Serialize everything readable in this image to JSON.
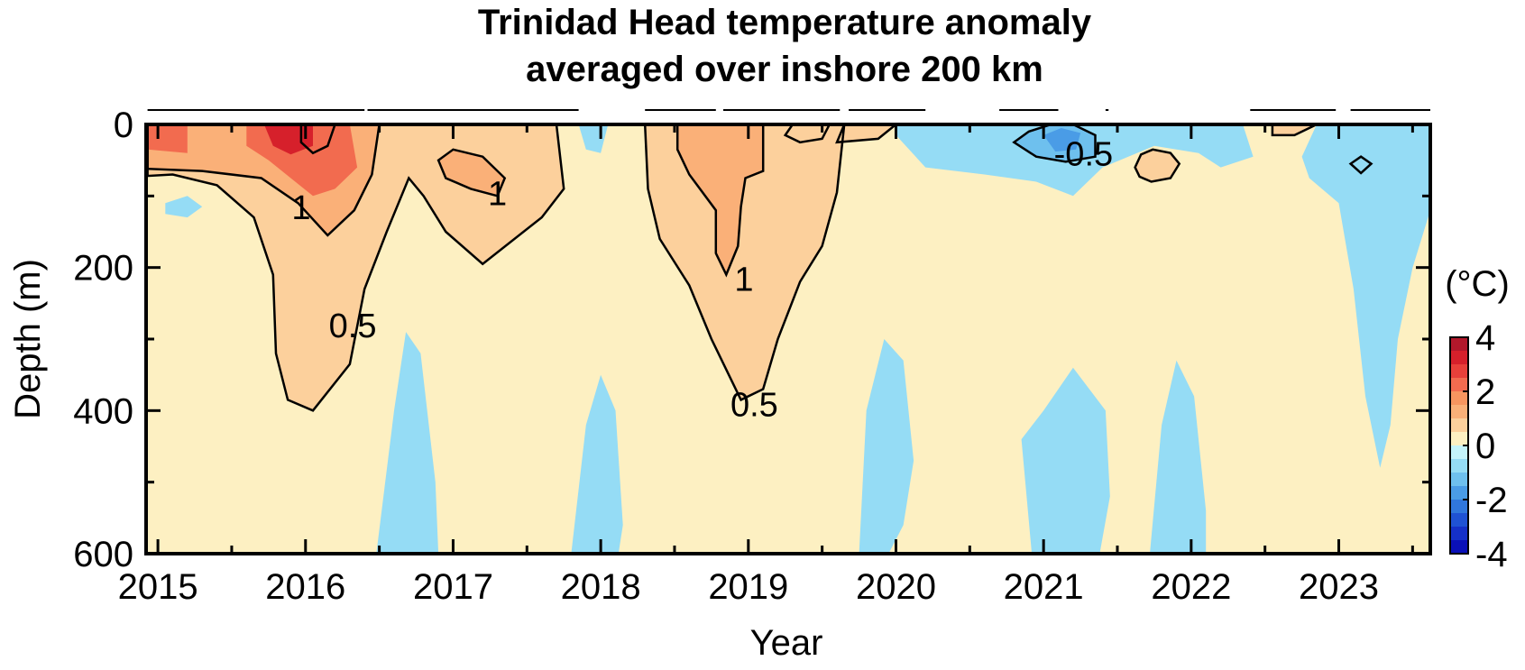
{
  "chart_data": {
    "type": "heatmap",
    "title_line1": "Trinidad Head temperature anomaly",
    "title_line2": "averaged over inshore 200 km",
    "xlabel": "Year",
    "ylabel": "Depth (m)",
    "x_ticks": [
      "2015",
      "2016",
      "2017",
      "2018",
      "2019",
      "2020",
      "2021",
      "2022",
      "2023"
    ],
    "xlim": [
      2014.92,
      2023.62
    ],
    "y_ticks": [
      "0",
      "200",
      "400",
      "600"
    ],
    "ylim": [
      0,
      600
    ],
    "y_inverted": true,
    "colorbar": {
      "unit": "(°C)",
      "ticks": [
        "4",
        "2",
        "0",
        "-2",
        "-4"
      ],
      "range": [
        -4,
        4
      ],
      "levels": [
        {
          "from": 3.5,
          "to": 4,
          "color": "#b2182b"
        },
        {
          "from": 3,
          "to": 3.5,
          "color": "#d6202b"
        },
        {
          "from": 2.5,
          "to": 3,
          "color": "#e8403a"
        },
        {
          "from": 2,
          "to": 2.5,
          "color": "#f26b4f"
        },
        {
          "from": 1.5,
          "to": 2,
          "color": "#f7955f"
        },
        {
          "from": 1,
          "to": 1.5,
          "color": "#fab078"
        },
        {
          "from": 0.5,
          "to": 1,
          "color": "#fcd09c"
        },
        {
          "from": 0,
          "to": 0.5,
          "color": "#fdf0c2"
        },
        {
          "from": -0.5,
          "to": 0,
          "color": "#c4f4fb"
        },
        {
          "from": -1,
          "to": -0.5,
          "color": "#95dcf5"
        },
        {
          "from": -1.5,
          "to": -1,
          "color": "#6ec0ee"
        },
        {
          "from": -2,
          "to": -1.5,
          "color": "#4a9ce6"
        },
        {
          "from": -2.5,
          "to": -2,
          "color": "#3077dd"
        },
        {
          "from": -3,
          "to": -2.5,
          "color": "#1f52d4"
        },
        {
          "from": -3.5,
          "to": -3,
          "color": "#1530c8"
        },
        {
          "from": -4,
          "to": -3.5,
          "color": "#0a10b8"
        }
      ]
    },
    "contour_levels": [
      -0.5,
      0.5,
      1
    ],
    "contour_labels": [
      {
        "text": "1",
        "year": 2015.97,
        "depth": 115
      },
      {
        "text": "1",
        "year": 2017.3,
        "depth": 95
      },
      {
        "text": "0.5",
        "year": 2016.32,
        "depth": 280
      },
      {
        "text": "1",
        "year": 2018.97,
        "depth": 215
      },
      {
        "text": "0.5",
        "year": 2019.04,
        "depth": 390
      },
      {
        "text": "-0.5",
        "year": 2021.27,
        "depth": 40
      }
    ],
    "anomaly_regions": [
      {
        "level": 0.5,
        "polygon": [
          [
            2014.93,
            0
          ],
          [
            2016.9,
            0
          ],
          [
            2017.7,
            0
          ],
          [
            2017.75,
            90
          ],
          [
            2017.6,
            130
          ],
          [
            2017.2,
            195
          ],
          [
            2016.95,
            150
          ],
          [
            2016.8,
            100
          ],
          [
            2016.7,
            75
          ],
          [
            2016.55,
            150
          ],
          [
            2016.4,
            230
          ],
          [
            2016.3,
            335
          ],
          [
            2016.05,
            400
          ],
          [
            2015.88,
            385
          ],
          [
            2015.8,
            320
          ],
          [
            2015.78,
            210
          ],
          [
            2015.65,
            130
          ],
          [
            2015.4,
            85
          ],
          [
            2015.1,
            70
          ],
          [
            2014.93,
            72
          ]
        ]
      },
      {
        "level": 0.5,
        "polygon": [
          [
            2018.3,
            0
          ],
          [
            2019.65,
            0
          ],
          [
            2019.6,
            95
          ],
          [
            2019.5,
            170
          ],
          [
            2019.35,
            220
          ],
          [
            2019.2,
            300
          ],
          [
            2019.1,
            370
          ],
          [
            2018.95,
            385
          ],
          [
            2018.75,
            300
          ],
          [
            2018.6,
            225
          ],
          [
            2018.4,
            160
          ],
          [
            2018.32,
            90
          ]
        ]
      },
      {
        "level": 0.5,
        "polygon": [
          [
            2019.65,
            0
          ],
          [
            2020.0,
            0
          ],
          [
            2019.88,
            20
          ],
          [
            2019.6,
            25
          ]
        ]
      },
      {
        "level": 0.5,
        "polygon": [
          [
            2021.62,
            60
          ],
          [
            2021.66,
            42
          ],
          [
            2021.74,
            35
          ],
          [
            2021.86,
            40
          ],
          [
            2021.92,
            55
          ],
          [
            2021.86,
            75
          ],
          [
            2021.73,
            80
          ],
          [
            2021.65,
            73
          ]
        ]
      },
      {
        "level": 0.5,
        "polygon": [
          [
            2022.55,
            0
          ],
          [
            2022.85,
            0
          ],
          [
            2022.7,
            15
          ],
          [
            2022.55,
            15
          ]
        ]
      },
      {
        "level": 1,
        "polygon": [
          [
            2014.93,
            0
          ],
          [
            2016.5,
            0
          ],
          [
            2016.45,
            70
          ],
          [
            2016.33,
            120
          ],
          [
            2016.15,
            155
          ],
          [
            2015.95,
            110
          ],
          [
            2015.7,
            75
          ],
          [
            2015.3,
            65
          ],
          [
            2014.93,
            62
          ]
        ]
      },
      {
        "level": 1,
        "polygon": [
          [
            2016.9,
            50
          ],
          [
            2017.0,
            35
          ],
          [
            2017.2,
            45
          ],
          [
            2017.35,
            75
          ],
          [
            2017.3,
            100
          ],
          [
            2017.12,
            90
          ],
          [
            2016.95,
            75
          ]
        ]
      },
      {
        "level": 1,
        "polygon": [
          [
            2018.52,
            0
          ],
          [
            2019.1,
            0
          ],
          [
            2019.1,
            65
          ],
          [
            2018.98,
            75
          ],
          [
            2018.95,
            115
          ],
          [
            2018.93,
            170
          ],
          [
            2018.85,
            210
          ],
          [
            2018.78,
            180
          ],
          [
            2018.78,
            120
          ],
          [
            2018.6,
            70
          ],
          [
            2018.52,
            35
          ]
        ]
      },
      {
        "level": 2,
        "polygon": [
          [
            2014.93,
            0
          ],
          [
            2015.2,
            0
          ],
          [
            2015.2,
            40
          ],
          [
            2014.93,
            35
          ]
        ]
      },
      {
        "level": 2,
        "polygon": [
          [
            2015.6,
            0
          ],
          [
            2016.3,
            0
          ],
          [
            2016.35,
            60
          ],
          [
            2016.2,
            90
          ],
          [
            2016.05,
            100
          ],
          [
            2015.9,
            75
          ],
          [
            2015.75,
            50
          ],
          [
            2015.6,
            30
          ]
        ]
      },
      {
        "level": 3,
        "polygon": [
          [
            2015.72,
            0
          ],
          [
            2016.05,
            0
          ],
          [
            2016.05,
            30
          ],
          [
            2015.9,
            42
          ],
          [
            2015.78,
            30
          ]
        ]
      },
      {
        "level": -0.5,
        "polygon": [
          [
            2020.0,
            0
          ],
          [
            2022.35,
            0
          ],
          [
            2022.42,
            45
          ],
          [
            2022.2,
            60
          ],
          [
            2022.05,
            40
          ],
          [
            2021.75,
            30
          ],
          [
            2021.4,
            60
          ],
          [
            2021.2,
            100
          ],
          [
            2020.95,
            80
          ],
          [
            2020.6,
            70
          ],
          [
            2020.2,
            60
          ],
          [
            2020.0,
            15
          ]
        ]
      },
      {
        "level": -0.5,
        "polygon": [
          [
            2022.85,
            0
          ],
          [
            2023.62,
            0
          ],
          [
            2023.62,
            120
          ],
          [
            2023.5,
            200
          ],
          [
            2023.4,
            300
          ],
          [
            2023.35,
            420
          ],
          [
            2023.28,
            480
          ],
          [
            2023.18,
            380
          ],
          [
            2023.1,
            230
          ],
          [
            2023.0,
            110
          ],
          [
            2022.8,
            75
          ],
          [
            2022.75,
            45
          ]
        ]
      },
      {
        "level": -0.5,
        "polygon": [
          [
            2015.05,
            110
          ],
          [
            2015.2,
            100
          ],
          [
            2015.3,
            115
          ],
          [
            2015.2,
            130
          ],
          [
            2015.05,
            125
          ]
        ]
      },
      {
        "level": -0.5,
        "polygon": [
          [
            2017.85,
            0
          ],
          [
            2018.05,
            0
          ],
          [
            2018.0,
            40
          ],
          [
            2017.9,
            35
          ]
        ]
      },
      {
        "level": -0.5,
        "polygon": [
          [
            2016.48,
            600
          ],
          [
            2016.6,
            400
          ],
          [
            2016.68,
            290
          ],
          [
            2016.78,
            320
          ],
          [
            2016.88,
            500
          ],
          [
            2016.9,
            600
          ]
        ]
      },
      {
        "level": -0.5,
        "polygon": [
          [
            2017.8,
            600
          ],
          [
            2017.9,
            420
          ],
          [
            2018.0,
            350
          ],
          [
            2018.1,
            400
          ],
          [
            2018.15,
            560
          ],
          [
            2018.12,
            600
          ]
        ]
      },
      {
        "level": -0.5,
        "polygon": [
          [
            2019.75,
            600
          ],
          [
            2019.8,
            400
          ],
          [
            2019.92,
            300
          ],
          [
            2020.05,
            330
          ],
          [
            2020.12,
            470
          ],
          [
            2020.05,
            560
          ],
          [
            2019.95,
            600
          ]
        ]
      },
      {
        "level": -0.5,
        "polygon": [
          [
            2020.92,
            600
          ],
          [
            2020.85,
            440
          ],
          [
            2021.0,
            400
          ],
          [
            2021.2,
            340
          ],
          [
            2021.42,
            400
          ],
          [
            2021.45,
            520
          ],
          [
            2021.38,
            600
          ]
        ]
      },
      {
        "level": -0.5,
        "polygon": [
          [
            2021.72,
            600
          ],
          [
            2021.8,
            420
          ],
          [
            2021.9,
            330
          ],
          [
            2022.02,
            380
          ],
          [
            2022.1,
            540
          ],
          [
            2022.1,
            600
          ]
        ]
      },
      {
        "level": -1,
        "polygon": [
          [
            2020.8,
            25
          ],
          [
            2020.9,
            10
          ],
          [
            2021.05,
            0
          ],
          [
            2021.2,
            0
          ],
          [
            2021.35,
            15
          ],
          [
            2021.35,
            45
          ],
          [
            2021.15,
            52
          ],
          [
            2020.95,
            45
          ]
        ]
      },
      {
        "level": -1.5,
        "polygon": [
          [
            2021.0,
            15
          ],
          [
            2021.12,
            5
          ],
          [
            2021.25,
            12
          ],
          [
            2021.22,
            35
          ],
          [
            2021.08,
            38
          ]
        ]
      }
    ],
    "extra_contours": [
      {
        "level": 0.5,
        "polygon": [
          [
            2015.97,
            0
          ],
          [
            2016.2,
            0
          ],
          [
            2016.15,
            30
          ],
          [
            2016.05,
            40
          ],
          [
            2015.97,
            25
          ]
        ]
      },
      {
        "level": 0.5,
        "polygon": [
          [
            2019.3,
            0
          ],
          [
            2019.55,
            0
          ],
          [
            2019.5,
            20
          ],
          [
            2019.35,
            25
          ],
          [
            2019.25,
            15
          ]
        ]
      },
      {
        "level": -0.5,
        "polygon": [
          [
            2023.08,
            55
          ],
          [
            2023.15,
            45
          ],
          [
            2023.22,
            55
          ],
          [
            2023.15,
            68
          ]
        ]
      }
    ],
    "top_bar_segments": [
      [
        2014.93,
        2016.4
      ],
      [
        2016.42,
        2017.85
      ],
      [
        2018.3,
        2018.78
      ],
      [
        2018.83,
        2019.62
      ],
      [
        2019.68,
        2020.2
      ],
      [
        2020.7,
        2021.1
      ],
      [
        2021.42,
        2021.44
      ],
      [
        2022.4,
        2022.98
      ],
      [
        2023.08,
        2023.62
      ]
    ]
  }
}
